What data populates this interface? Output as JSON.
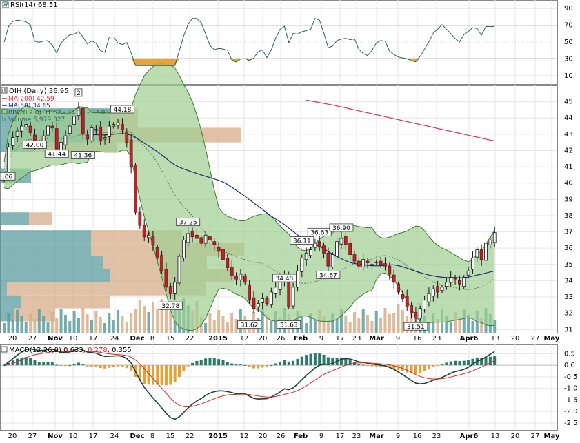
{
  "colors": {
    "up": "#1a1a1a",
    "down": "#b8242a",
    "bb_fill": "#9fce92",
    "bb_line": "#3a7a2f",
    "ma200": "#d9304a",
    "ma50": "#1f2a6e",
    "vol_teal": "#5b9ea0",
    "vol_tan": "#d7ae8a",
    "rsi_line": "#2e5d57",
    "rsi_fill": "#e49a22",
    "macd_line": "#1c3f3a",
    "signal_line": "#d92626",
    "hist_pos": "#2a7a6a",
    "hist_neg": "#e4a030"
  },
  "rsi": {
    "label_name": "RSI(14)",
    "label_value": "68.51",
    "ticks": [
      "90",
      "70",
      "50",
      "30",
      "10"
    ]
  },
  "price": {
    "legend": {
      "title": "OIH (Daily)",
      "title_value": "36.95",
      "ma200": "MA(200) 42.59",
      "ma50": "MA(50) 34.65",
      "bb": "BB(20,2.0) 31.62 - 34.33 - 37.03",
      "volume": "Volume 5,979,327"
    },
    "ticks": [
      "45",
      "44",
      "43",
      "42",
      "41",
      "40",
      "39",
      "38",
      "37",
      "36",
      "35",
      "34",
      "33",
      "32",
      "31"
    ],
    "annotations": [
      {
        "text": ".06",
        "i": 0,
        "v": 40.06
      },
      {
        "text": "42.00",
        "i": 7,
        "v": 42.0
      },
      {
        "text": "41.44",
        "i": 12,
        "v": 41.44
      },
      {
        "text": "41.36",
        "i": 18,
        "v": 41.36
      },
      {
        "text": "44.18",
        "i": 27,
        "v": 44.18
      },
      {
        "text": "37.25",
        "i": 42,
        "v": 37.25
      },
      {
        "text": "32.78",
        "i": 38,
        "v": 32.78
      },
      {
        "text": "31.62",
        "i": 56,
        "v": 31.62
      },
      {
        "text": "31.63",
        "i": 65,
        "v": 31.63
      },
      {
        "text": "34.48",
        "i": 64,
        "v": 34.48
      },
      {
        "text": "36.11",
        "i": 68,
        "v": 36.11
      },
      {
        "text": "36.63",
        "i": 72,
        "v": 36.63
      },
      {
        "text": "36.90",
        "i": 77,
        "v": 36.9
      },
      {
        "text": "34.67",
        "i": 74,
        "v": 34.67
      },
      {
        "text": "31.51",
        "i": 94,
        "v": 31.51
      },
      {
        "text": "2",
        "i": 17,
        "v": 45.2
      }
    ]
  },
  "macd": {
    "label_name": "MACD(12,26,9)",
    "label_macd": "0.633",
    "label_signal": "0.278",
    "label_hist": "0.355",
    "ticks": [
      "0.5",
      "0.0",
      "-0.5",
      "-1.0",
      "-1.5",
      "-2.0",
      "-2.5"
    ]
  },
  "x_labels": [
    "20",
    "27",
    "Nov",
    "10",
    "17",
    "24",
    "Dec",
    "8",
    "15",
    "22",
    "2015",
    "12",
    "20",
    "26",
    "Feb",
    "9",
    "17",
    "23",
    "Mar",
    "9",
    "16",
    "23",
    "Apr6",
    "13",
    "20",
    "27",
    "May"
  ],
  "chart_data": {
    "type": "candlestick",
    "ticker": "OIH",
    "title": "OIH (Daily)",
    "xlabel": "",
    "ylabel": "",
    "ylim": [
      30.8,
      46.0
    ],
    "categories": [
      "20",
      "27",
      "Nov",
      "10",
      "17",
      "24",
      "Dec",
      "8",
      "15",
      "22",
      "2015",
      "12",
      "20",
      "26",
      "Feb",
      "9",
      "17",
      "23",
      "Mar",
      "9",
      "16",
      "23",
      "Apr6",
      "13",
      "20",
      "27",
      "May"
    ],
    "close": [
      40.5,
      42.2,
      42.8,
      43.2,
      43.5,
      43.6,
      43.1,
      42.3,
      42.4,
      42.9,
      43.5,
      43.4,
      42.1,
      42.5,
      42.9,
      43.5,
      44.1,
      44.6,
      43.0,
      42.7,
      43.4,
      43.3,
      42.6,
      42.8,
      43.5,
      43.6,
      43.7,
      43.3,
      42.5,
      41.0,
      38.2,
      37.4,
      36.7,
      36.8,
      36.2,
      35.4,
      34.6,
      33.6,
      33.2,
      33.9,
      35.5,
      36.5,
      36.9,
      36.7,
      36.6,
      36.3,
      36.8,
      36.5,
      36.2,
      35.8,
      35.3,
      34.8,
      34.3,
      34.1,
      34.4,
      33.9,
      32.8,
      32.3,
      32.6,
      32.9,
      32.6,
      33.3,
      33.6,
      33.9,
      34.3,
      32.4,
      33.6,
      34.6,
      35.4,
      35.7,
      35.9,
      36.3,
      36.1,
      35.7,
      34.9,
      35.6,
      36.4,
      36.6,
      36.2,
      35.6,
      35.2,
      34.9,
      35.3,
      35.1,
      35.0,
      35.1,
      35.0,
      34.9,
      34.4,
      33.9,
      33.3,
      32.9,
      32.4,
      32.0,
      31.7,
      32.3,
      32.8,
      33.2,
      33.5,
      33.3,
      33.6,
      33.9,
      34.2,
      34.1,
      33.8,
      34.2,
      34.6,
      35.4,
      35.9,
      35.3,
      36.3,
      36.5,
      36.95
    ],
    "ma200": [
      45.1,
      45.05,
      45.0,
      44.95,
      44.9,
      44.85,
      44.8,
      44.74,
      44.68,
      44.62,
      44.56,
      44.5,
      44.44,
      44.38,
      44.32,
      44.26,
      44.2,
      44.14,
      44.08,
      44.02,
      43.96,
      43.9,
      43.84,
      43.78,
      43.72,
      43.66,
      43.6,
      43.54,
      43.48,
      43.42,
      43.36,
      43.3,
      43.24,
      43.18,
      43.12,
      43.06,
      43.0,
      42.94,
      42.88,
      42.82,
      42.76,
      42.7,
      42.64,
      42.59
    ],
    "ma200_start_index": 69,
    "ma50_last": 34.65,
    "bb": {
      "lower": 31.62,
      "middle": 34.33,
      "upper": 37.03
    },
    "volume_last": 5979327,
    "rsi_last": 68.51,
    "macd_last": 0.633,
    "signal_last": 0.278,
    "hist_last": 0.355,
    "rsi_ylim": [
      0,
      100
    ],
    "macd_ylim": [
      -2.8,
      0.9
    ]
  }
}
